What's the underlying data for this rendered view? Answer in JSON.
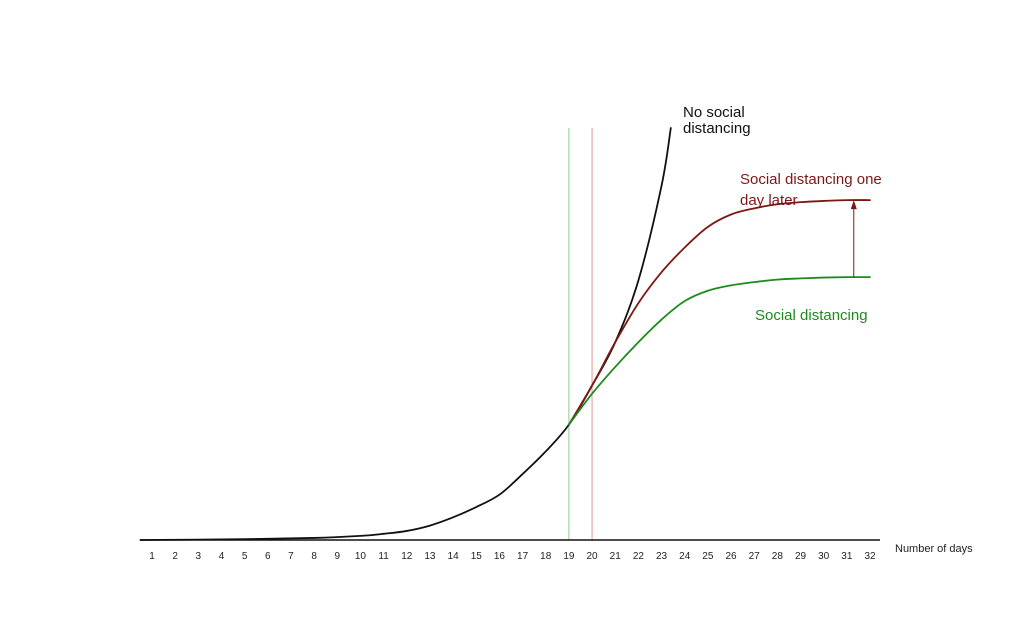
{
  "chart_data": {
    "type": "line",
    "xlabel": "Number of days",
    "ylabel": "",
    "title": "",
    "x_ticks": [
      1,
      2,
      3,
      4,
      5,
      6,
      7,
      8,
      9,
      10,
      11,
      12,
      13,
      14,
      15,
      16,
      17,
      18,
      19,
      20,
      21,
      22,
      23,
      24,
      25,
      26,
      27,
      28,
      29,
      30,
      31,
      32
    ],
    "xlim": [
      0.5,
      32.5
    ],
    "ylim": [
      0,
      100
    ],
    "grid": false,
    "legend": "none",
    "vertical_markers": [
      {
        "x": 19,
        "color": "#9ed49e"
      },
      {
        "x": 20,
        "color": "#e5a9a9"
      }
    ],
    "series": [
      {
        "label_lines": [
          "No social",
          "distancing"
        ],
        "color": "#111111",
        "points": [
          [
            0.5,
            0
          ],
          [
            5,
            0.2
          ],
          [
            8,
            0.5
          ],
          [
            10,
            1
          ],
          [
            11,
            1.5
          ],
          [
            12,
            2.2
          ],
          [
            13,
            3.5
          ],
          [
            14,
            5.5
          ],
          [
            15,
            8
          ],
          [
            16,
            11
          ],
          [
            17,
            16
          ],
          [
            18,
            21.5
          ],
          [
            19,
            28
          ],
          [
            20,
            37.5
          ],
          [
            21,
            48
          ],
          [
            22,
            63
          ],
          [
            23,
            86
          ],
          [
            23.4,
            100
          ]
        ]
      },
      {
        "label_lines": [
          "Social distancing one",
          "day later"
        ],
        "color": "#7f1616",
        "points": [
          [
            19,
            28
          ],
          [
            20,
            37.5
          ],
          [
            21,
            48
          ],
          [
            22,
            57.5
          ],
          [
            23,
            65
          ],
          [
            24,
            71
          ],
          [
            25,
            76
          ],
          [
            26,
            79
          ],
          [
            27,
            80.5
          ],
          [
            28,
            81.5
          ],
          [
            29,
            82
          ],
          [
            30,
            82.3
          ],
          [
            31,
            82.5
          ],
          [
            32,
            82.5
          ]
        ]
      },
      {
        "label_lines": [
          "Social distancing"
        ],
        "color": "#1e8a1e",
        "points": [
          [
            19,
            28
          ],
          [
            20,
            35.5
          ],
          [
            21,
            42
          ],
          [
            22,
            48
          ],
          [
            23,
            53.5
          ],
          [
            24,
            58
          ],
          [
            25,
            60.5
          ],
          [
            26,
            61.8
          ],
          [
            27,
            62.6
          ],
          [
            28,
            63.2
          ],
          [
            29,
            63.5
          ],
          [
            30,
            63.7
          ],
          [
            31,
            63.8
          ],
          [
            32,
            63.8
          ]
        ]
      }
    ],
    "annotations": [
      {
        "type": "arrow",
        "x": 31.3,
        "from_y": 63.8,
        "to_y": 82.5,
        "color": "#7f1616"
      }
    ]
  }
}
